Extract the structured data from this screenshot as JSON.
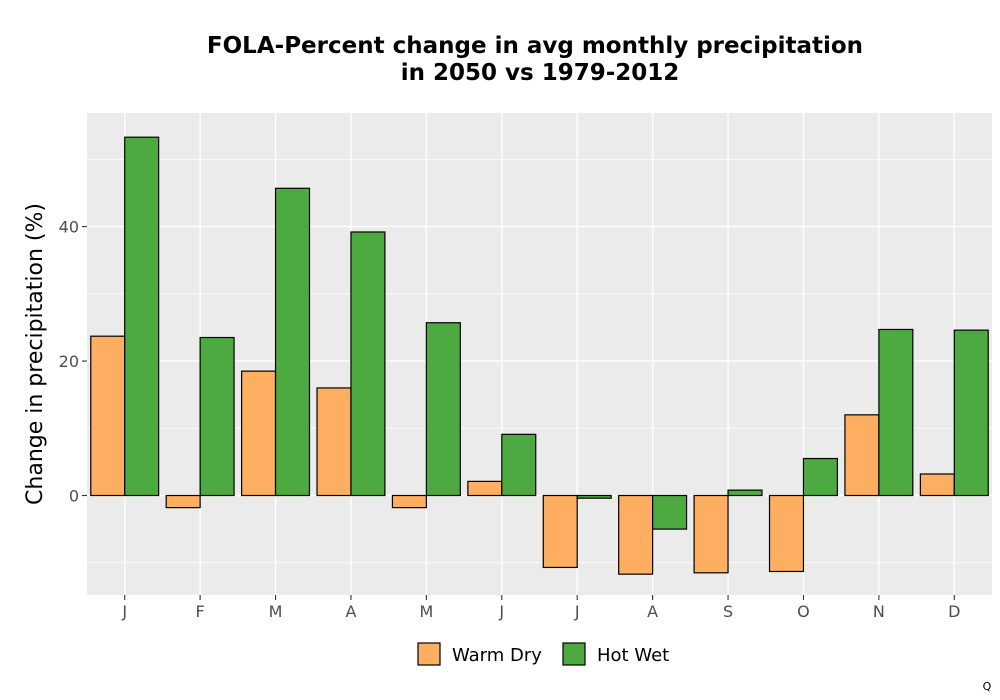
{
  "chart_data": {
    "type": "bar",
    "title_lines": [
      "FOLA-Percent change in avg monthly precipitation",
      "in 2050 vs 1979-2012"
    ],
    "xlabel": "",
    "ylabel": "Change in precipitation (%)",
    "categories": [
      "J",
      "F",
      "M",
      "A",
      "M",
      "J",
      "J",
      "A",
      "S",
      "O",
      "N",
      "D"
    ],
    "series": [
      {
        "name": "Warm Dry",
        "color": "#FDAE61",
        "values": [
          23.7,
          -1.8,
          18.5,
          16.0,
          -1.8,
          2.1,
          -10.7,
          -11.7,
          -11.5,
          -11.3,
          12.0,
          3.2
        ]
      },
      {
        "name": "Hot Wet",
        "color": "#4DAA40",
        "values": [
          53.3,
          23.5,
          45.7,
          39.2,
          25.7,
          9.1,
          -0.4,
          -5.0,
          0.8,
          5.5,
          24.7,
          24.6
        ]
      }
    ],
    "ylim": [
      -14.8,
      56.9
    ],
    "yticks": [
      0,
      20,
      40
    ],
    "grid": true,
    "legend_position": "bottom"
  },
  "corner_mark": "Q"
}
